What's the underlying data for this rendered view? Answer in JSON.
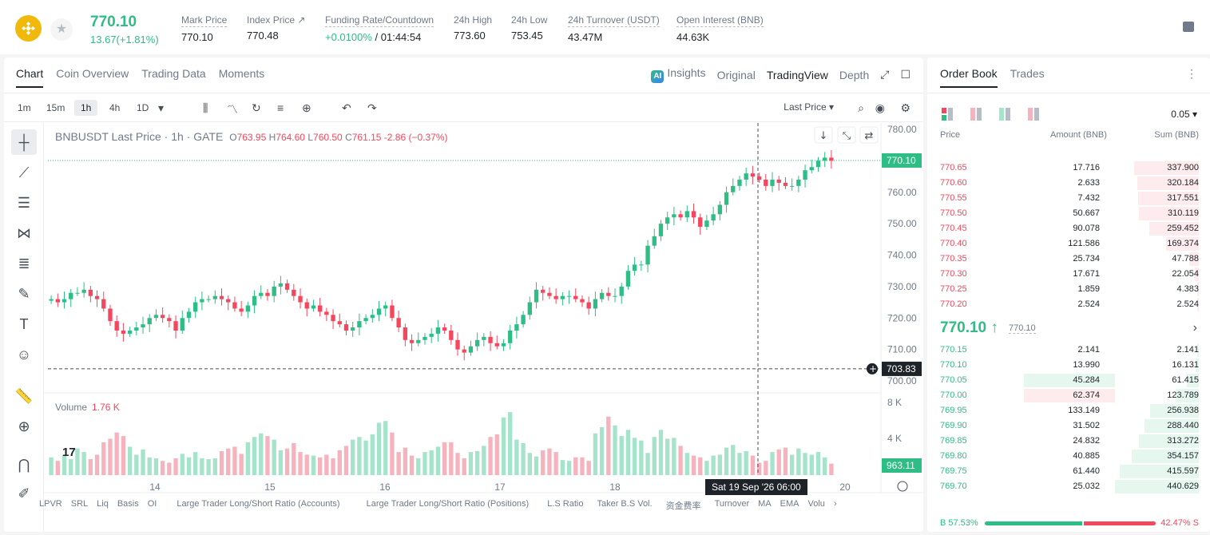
{
  "ticker": {
    "last_price": "770.10",
    "change": "13.67(+1.81%)",
    "stats": [
      {
        "label": "Mark Price",
        "value": "770.10",
        "dashed": true
      },
      {
        "label": "Index Price ↗",
        "value": "770.48",
        "dashed": true
      },
      {
        "label": "Funding Rate/Countdown",
        "value_green": "+0.0100%",
        "value": " / 01:44:54",
        "dashed": true
      },
      {
        "label": "24h High",
        "value": "773.60"
      },
      {
        "label": "24h Low",
        "value": "753.45"
      },
      {
        "label": "24h Turnover (USDT)",
        "value": "43.47M",
        "dashed": true
      },
      {
        "label": "Open Interest (BNB)",
        "value": "44.63K",
        "dashed": true
      }
    ]
  },
  "chart_tabs": [
    "Chart",
    "Coin Overview",
    "Trading Data",
    "Moments"
  ],
  "view_tabs": {
    "insights": "Insights",
    "original": "Original",
    "tradingview": "TradingView",
    "depth": "Depth",
    "ai_badge": "AI"
  },
  "timeframes": [
    "1m",
    "15m",
    "1h",
    "4h",
    "1D"
  ],
  "active_timeframe": "1h",
  "price_source": "Last Price",
  "legend": {
    "title": "BNBUSDT Last Price · 1h · GATE",
    "o_label": "O",
    "o": "763.95",
    "h_label": "H",
    "h": "764.60",
    "l_label": "L",
    "l": "760.50",
    "c_label": "C",
    "c": "761.15",
    "change": "-2.86 (−0.37%)"
  },
  "volume_legend": {
    "label": "Volume",
    "value": "1.76 K"
  },
  "price_axis": [
    "780.00",
    "770.00",
    "760.00",
    "750.00",
    "740.00",
    "730.00",
    "720.00",
    "710.00",
    "700.00"
  ],
  "price_tags": {
    "current": "770.10",
    "crosshair": "703.83",
    "volume": "963.11"
  },
  "volume_axis": [
    "8 K",
    "4 K"
  ],
  "time_axis": [
    "14",
    "15",
    "16",
    "17",
    "18",
    "20"
  ],
  "crosshair_time": "Sat 19 Sep '26   06:00",
  "indicators": [
    "LPVR",
    "SRL",
    "Liq",
    "Basis",
    "OI",
    "Large Trader Long/Short Ratio (Accounts)",
    "Large Trader Long/Short Ratio (Positions)",
    "L.S Ratio",
    "Taker B.S Vol.",
    "资金费率",
    "Turnover",
    "MA",
    "EMA",
    "Volu"
  ],
  "tv_logo": "17",
  "chart_data": {
    "type": "candlestick",
    "ylim": [
      700,
      780
    ],
    "series_close": [
      726,
      725,
      726,
      728,
      728,
      729,
      727,
      726,
      723,
      719,
      716,
      715,
      716,
      717,
      718,
      720,
      721,
      720,
      719,
      716,
      720,
      722,
      725,
      726,
      726,
      727,
      726,
      725,
      723,
      722,
      724,
      727,
      728,
      727,
      730,
      731,
      729,
      727,
      725,
      723,
      724,
      722,
      721,
      719,
      718,
      716,
      717,
      719,
      720,
      721,
      723,
      724,
      720,
      717,
      713,
      712,
      713,
      714,
      715,
      717,
      716,
      713,
      710,
      709,
      711,
      713,
      714,
      712,
      711,
      712,
      716,
      718,
      721,
      725,
      729,
      728,
      727,
      726,
      727,
      727,
      726,
      725,
      723,
      726,
      728,
      727,
      727,
      730,
      735,
      737,
      737,
      743,
      746,
      750,
      752,
      753,
      752,
      754,
      752,
      749,
      751,
      753,
      756,
      760,
      762,
      764,
      766,
      765,
      764,
      762,
      764,
      763,
      762,
      762,
      764,
      767,
      768,
      770,
      771,
      770
    ],
    "volume": [
      2.0,
      1.6,
      2.3,
      1.8,
      3.0,
      2.6,
      1.8,
      2.3,
      3.7,
      4.1,
      4.8,
      4.4,
      3.2,
      2.3,
      2.9,
      2.0,
      1.9,
      1.6,
      1.4,
      1.9,
      2.4,
      2.0,
      2.6,
      1.9,
      1.8,
      1.9,
      2.7,
      3.0,
      3.2,
      2.4,
      3.7,
      4.3,
      4.7,
      4.4,
      4.0,
      2.8,
      3.0,
      3.6,
      2.6,
      2.3,
      2.2,
      2.0,
      2.3,
      1.9,
      2.8,
      3.3,
      4.0,
      4.3,
      3.9,
      4.6,
      5.9,
      6.1,
      4.8,
      2.6,
      3.1,
      2.2,
      1.9,
      2.6,
      2.8,
      3.2,
      3.7,
      3.7,
      2.5,
      1.9,
      2.6,
      2.7,
      3.3,
      4.3,
      4.6,
      6.5,
      7.1,
      4.0,
      3.6,
      2.5,
      2.1,
      2.8,
      3.0,
      2.6,
      1.7,
      1.6,
      2.0,
      2.0,
      1.6,
      4.7,
      5.4,
      6.6,
      5.6,
      4.4,
      5.1,
      4.2,
      3.9,
      2.5,
      4.3,
      5.1,
      4.1,
      4.2,
      3.3,
      2.5,
      2.2,
      2.0,
      1.6,
      2.2,
      2.3,
      3.1,
      3.4,
      2.5,
      2.7,
      2.2,
      1.4,
      1.6,
      2.6,
      2.9,
      3.1,
      2.3,
      3.0,
      2.5,
      2.3,
      2.6,
      2.0,
      1.3
    ]
  },
  "orderbook": {
    "tabs": [
      "Order Book",
      "Trades"
    ],
    "precision": "0.05",
    "headers": {
      "price": "Price",
      "amount": "Amount (BNB)",
      "sum": "Sum (BNB)"
    },
    "asks": [
      {
        "price": "770.65",
        "amount": "17.716",
        "sum": "337.900",
        "depth": 0.77
      },
      {
        "price": "770.60",
        "amount": "2.633",
        "sum": "320.184",
        "depth": 0.73
      },
      {
        "price": "770.55",
        "amount": "7.432",
        "sum": "317.551",
        "depth": 0.72
      },
      {
        "price": "770.50",
        "amount": "50.667",
        "sum": "310.119",
        "depth": 0.71
      },
      {
        "price": "770.45",
        "amount": "90.078",
        "sum": "259.452",
        "depth": 0.59
      },
      {
        "price": "770.40",
        "amount": "121.586",
        "sum": "169.374",
        "depth": 0.39
      },
      {
        "price": "770.35",
        "amount": "25.734",
        "sum": "47.788",
        "depth": 0.11
      },
      {
        "price": "770.30",
        "amount": "17.671",
        "sum": "22.054",
        "depth": 0.05
      },
      {
        "price": "770.25",
        "amount": "1.859",
        "sum": "4.383",
        "depth": 0.01
      },
      {
        "price": "770.20",
        "amount": "2.524",
        "sum": "2.524",
        "depth": 0.006
      }
    ],
    "mid_price": "770.10 ↑",
    "mark_price": "770.10",
    "bids": [
      {
        "price": "770.15",
        "amount": "2.141",
        "sum": "2.141",
        "depth": 0.005,
        "amtbar": 0
      },
      {
        "price": "770.10",
        "amount": "13.990",
        "sum": "16.131",
        "depth": 0.037,
        "amtbar": 0
      },
      {
        "price": "770.05",
        "amount": "45.284",
        "sum": "61.415",
        "depth": 0.14,
        "amtbar": 0.36
      },
      {
        "price": "770.00",
        "amount": "62.374",
        "sum": "123.789",
        "depth": 0.28,
        "amtbar": 0.36
      },
      {
        "price": "769.95",
        "amount": "133.149",
        "sum": "256.938",
        "depth": 0.58,
        "amtbar": 0
      },
      {
        "price": "769.90",
        "amount": "31.502",
        "sum": "288.440",
        "depth": 0.65,
        "amtbar": 0
      },
      {
        "price": "769.85",
        "amount": "24.832",
        "sum": "313.272",
        "depth": 0.71,
        "amtbar": 0
      },
      {
        "price": "769.80",
        "amount": "40.885",
        "sum": "354.157",
        "depth": 0.8,
        "amtbar": 0
      },
      {
        "price": "769.75",
        "amount": "61.440",
        "sum": "415.597",
        "depth": 0.94,
        "amtbar": 0
      },
      {
        "price": "769.70",
        "amount": "25.032",
        "sum": "440.629",
        "depth": 1.0,
        "amtbar": 0
      }
    ],
    "buy_ratio": "B 57.53%",
    "sell_ratio": "42.47% S",
    "buy_fraction": 0.5753
  },
  "colors": {
    "up": "#2ebd85",
    "down": "#f6465d",
    "up_vol": "#a6e3cb",
    "down_vol": "#f7b3bd"
  }
}
